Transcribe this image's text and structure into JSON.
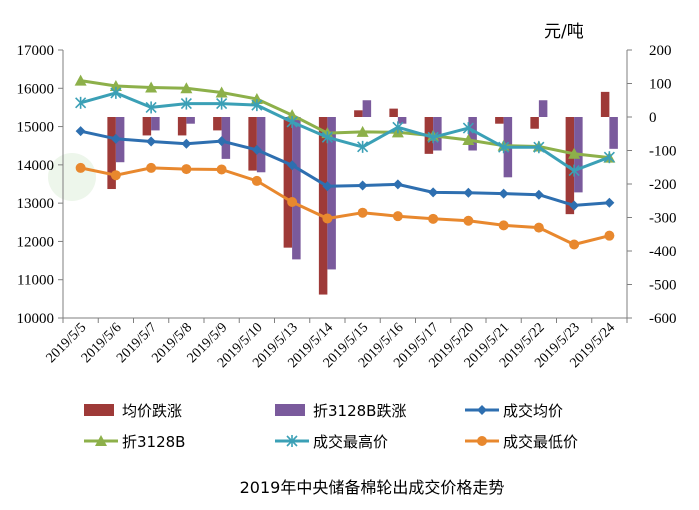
{
  "chart_data": {
    "type": "bar+line",
    "title": "2019年中央储备棉轮出成交价格走势",
    "unit_label": "元/吨",
    "categories": [
      "2019/5/5",
      "2019/5/6",
      "2019/5/7",
      "2019/5/8",
      "2019/5/9",
      "2019/5/10",
      "2019/5/13",
      "2019/5/14",
      "2019/5/15",
      "2019/5/16",
      "2019/5/17",
      "2019/5/20",
      "2019/5/21",
      "2019/5/22",
      "2019/5/23",
      "2019/5/24"
    ],
    "left_axis": {
      "min": 10000,
      "max": 17000,
      "ticks": [
        10000,
        11000,
        12000,
        13000,
        14000,
        15000,
        16000,
        17000
      ]
    },
    "right_axis": {
      "min": -600,
      "max": 200,
      "ticks": [
        -600,
        -500,
        -400,
        -300,
        -200,
        -100,
        0,
        100,
        200
      ]
    },
    "series": [
      {
        "name": "均价跌涨",
        "kind": "bar",
        "axis": "right",
        "color": "#9e3a38",
        "values": [
          0,
          -215,
          -55,
          -55,
          -40,
          -160,
          -390,
          -530,
          20,
          25,
          -110,
          0,
          -20,
          -35,
          -290,
          75
        ]
      },
      {
        "name": "折3128B跌涨",
        "kind": "bar",
        "axis": "right",
        "color": "#7a5a9c",
        "values": [
          0,
          -135,
          -40,
          -20,
          -125,
          -165,
          -425,
          -455,
          50,
          -20,
          -100,
          -100,
          -180,
          50,
          -225,
          -95
        ]
      },
      {
        "name": "成交均价",
        "kind": "line",
        "axis": "left",
        "color": "#2e6fb0",
        "marker": "diamond",
        "values": [
          14880,
          14680,
          14610,
          14550,
          14620,
          14390,
          13990,
          13440,
          13460,
          13490,
          13280,
          13270,
          13250,
          13220,
          12940,
          13010
        ]
      },
      {
        "name": "折3128B",
        "kind": "line",
        "axis": "left",
        "color": "#8db04a",
        "marker": "triangle",
        "values": [
          16200,
          16060,
          16020,
          16000,
          15890,
          15720,
          15300,
          14830,
          14860,
          14850,
          14760,
          14650,
          14500,
          14480,
          14290,
          14190
        ]
      },
      {
        "name": "成交最高价",
        "kind": "line",
        "axis": "left",
        "color": "#3ba0b6",
        "marker": "star",
        "values": [
          15620,
          15880,
          15500,
          15600,
          15600,
          15560,
          15120,
          14720,
          14470,
          14980,
          14720,
          14960,
          14460,
          14460,
          13850,
          14200
        ]
      },
      {
        "name": "成交最低价",
        "kind": "line",
        "axis": "left",
        "color": "#e8882e",
        "marker": "circle",
        "values": [
          13920,
          13730,
          13920,
          13890,
          13880,
          13580,
          13030,
          12600,
          12750,
          12660,
          12590,
          12540,
          12420,
          12360,
          11920,
          12150
        ]
      }
    ]
  }
}
